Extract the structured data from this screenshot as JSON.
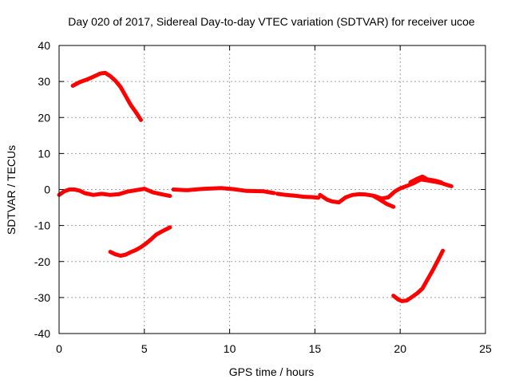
{
  "chart_data": {
    "type": "line",
    "title": "Day 020 of 2017, Sidereal Day-to-day VTEC variation (SDTVAR) for receiver ucoe",
    "xlabel": "GPS time / hours",
    "ylabel": "SDTVAR / TECUs",
    "xlim": [
      0,
      25
    ],
    "ylim": [
      -40,
      40
    ],
    "xticks": [
      0,
      5,
      10,
      15,
      20,
      25
    ],
    "yticks": [
      -40,
      -30,
      -20,
      -10,
      0,
      10,
      20,
      30,
      40
    ],
    "grid": true,
    "trace_color": "#ff0000",
    "series": [
      {
        "name": "arc-upper-early",
        "x": [
          0.8,
          1.2,
          1.6,
          2.0,
          2.4,
          2.7,
          3.0,
          3.3,
          3.6,
          3.9,
          4.2,
          4.5,
          4.8
        ],
        "y": [
          28.8,
          29.8,
          30.5,
          31.3,
          32.2,
          32.4,
          31.5,
          30.2,
          28.5,
          26.0,
          23.5,
          21.5,
          19.3
        ]
      },
      {
        "name": "arc-near-zero-1",
        "x": [
          0.0,
          0.3,
          0.6,
          0.9,
          1.2,
          1.5,
          2.0,
          2.5,
          3.0,
          3.5,
          4.0,
          4.5,
          5.0,
          5.5,
          6.0,
          6.5
        ],
        "y": [
          -1.5,
          -0.5,
          0.0,
          0.0,
          -0.3,
          -1.0,
          -1.5,
          -1.2,
          -1.5,
          -1.3,
          -0.6,
          -0.2,
          0.2,
          -0.8,
          -1.3,
          -1.8
        ]
      },
      {
        "name": "arc-near-zero-2",
        "x": [
          6.7,
          7.5,
          8.5,
          9.5,
          10.2,
          11.0,
          12.0,
          12.6
        ],
        "y": [
          0.0,
          -0.2,
          0.2,
          0.4,
          0.1,
          -0.4,
          -0.5,
          -1.0
        ]
      },
      {
        "name": "arc-near-zero-3",
        "x": [
          12.8,
          13.3,
          13.8,
          14.3,
          14.8,
          15.2
        ],
        "y": [
          -1.2,
          -1.5,
          -1.7,
          -2.0,
          -2.1,
          -2.3
        ]
      },
      {
        "name": "arc-near-zero-4",
        "x": [
          15.3,
          15.7,
          16.0,
          16.4,
          16.8,
          17.2,
          17.6,
          18.0,
          18.4,
          18.8,
          19.2,
          19.6
        ],
        "y": [
          -1.5,
          -2.8,
          -3.3,
          -3.6,
          -2.2,
          -1.5,
          -1.3,
          -1.4,
          -1.7,
          -2.8,
          -4.0,
          -4.8
        ]
      },
      {
        "name": "arc-near-zero-5",
        "x": [
          18.5,
          18.9,
          19.3,
          19.7,
          20.0,
          20.4,
          20.8,
          21.2,
          21.6,
          22.0,
          22.4,
          22.8,
          23.0
        ],
        "y": [
          -1.8,
          -2.5,
          -2.2,
          -0.5,
          0.3,
          1.0,
          1.8,
          2.8,
          2.5,
          2.2,
          1.8,
          1.2,
          0.9
        ]
      },
      {
        "name": "arc-upper-late",
        "x": [
          20.6,
          21.0,
          21.3,
          21.6,
          22.0,
          22.4
        ],
        "y": [
          2.0,
          3.0,
          3.6,
          2.8,
          2.5,
          2.0
        ]
      },
      {
        "name": "arc-lower-early",
        "x": [
          3.0,
          3.3,
          3.6,
          3.9,
          4.2,
          4.5,
          4.8,
          5.1,
          5.4,
          5.7,
          6.0,
          6.3,
          6.5
        ],
        "y": [
          -17.3,
          -18.0,
          -18.4,
          -18.1,
          -17.4,
          -16.8,
          -16.0,
          -15.0,
          -13.8,
          -12.5,
          -11.7,
          -11.0,
          -10.5
        ]
      },
      {
        "name": "arc-lower-late",
        "x": [
          19.6,
          19.9,
          20.1,
          20.4,
          20.7,
          21.0,
          21.3,
          21.6,
          21.9,
          22.2,
          22.5
        ],
        "y": [
          -29.5,
          -30.6,
          -31.0,
          -30.8,
          -29.8,
          -28.8,
          -27.5,
          -25.0,
          -22.5,
          -19.8,
          -17.0
        ]
      }
    ]
  }
}
